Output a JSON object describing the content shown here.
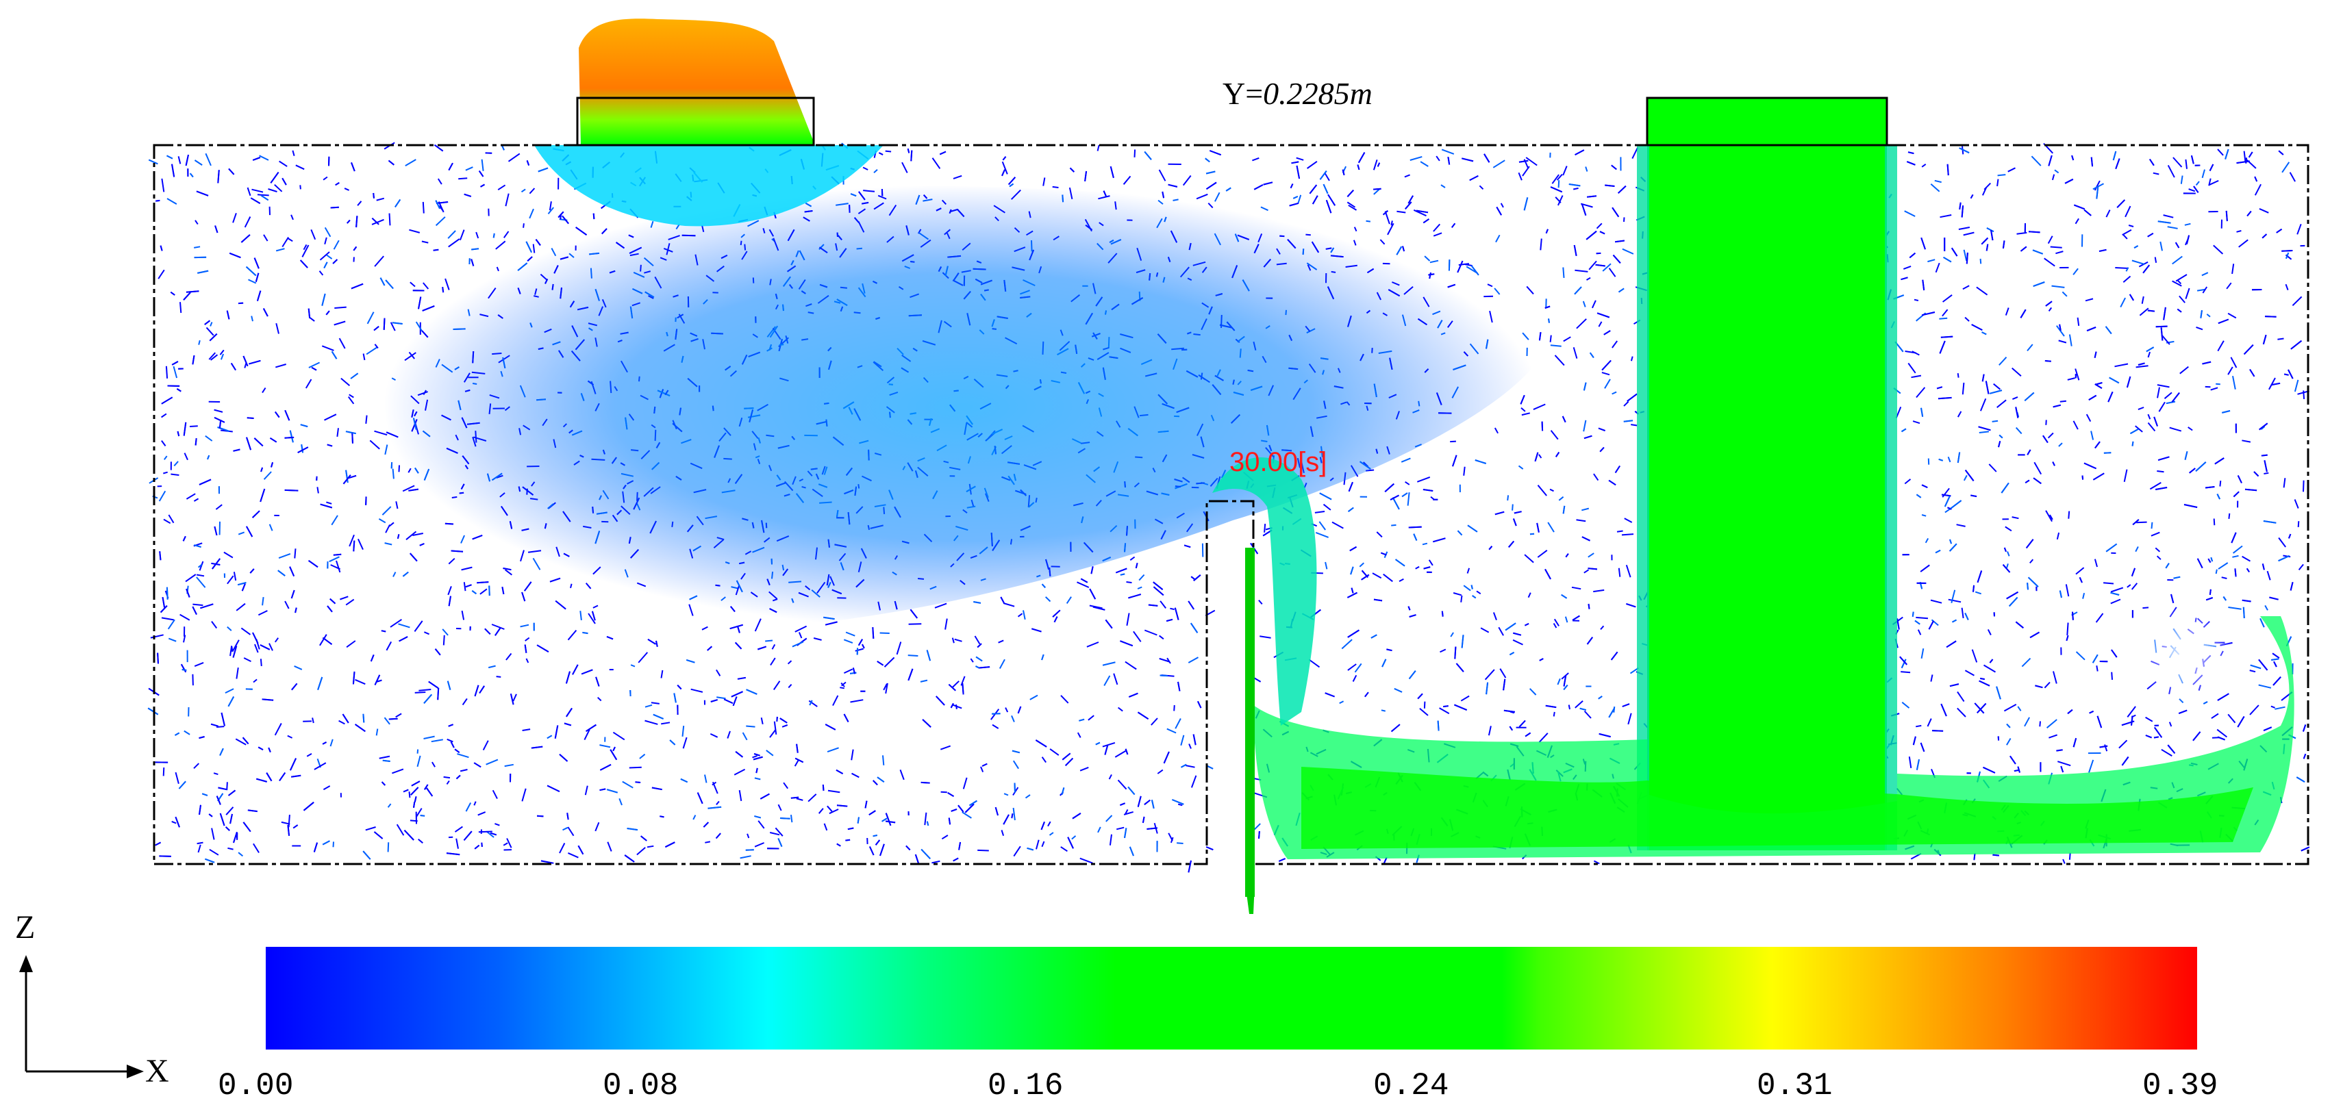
{
  "slice_label": {
    "axis": "Y=",
    "value": "0.2285m"
  },
  "time_label": "30.00[s]",
  "axes_indicator": {
    "vertical": "Z",
    "horizontal": "X"
  },
  "colorbar": {
    "ticks": [
      "0.00",
      "0.08",
      "0.16",
      "0.24",
      "0.31",
      "0.39"
    ],
    "colors": [
      "#0000ff",
      "#0080ff",
      "#00ffff",
      "#00ff20",
      "#00ff00",
      "#ffff00",
      "#ff8000",
      "#ff0000"
    ]
  }
}
